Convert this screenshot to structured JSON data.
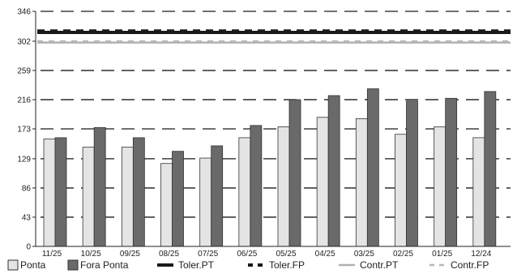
{
  "chart_data": {
    "type": "bar",
    "title": "",
    "xlabel": "",
    "ylabel": "",
    "ylim": [
      0,
      346
    ],
    "yticks": [
      0,
      43,
      86,
      129,
      173,
      216,
      259,
      302,
      346
    ],
    "categories": [
      "11/25",
      "10/25",
      "09/25",
      "08/25",
      "07/25",
      "06/25",
      "05/25",
      "04/25",
      "03/25",
      "02/25",
      "01/25",
      "12/24"
    ],
    "series": [
      {
        "name": "Ponta",
        "color": "#e4e4e4",
        "values": [
          158,
          146,
          146,
          122,
          130,
          160,
          176,
          190,
          188,
          165,
          176,
          160
        ]
      },
      {
        "name": "Fora Ponta",
        "color": "#6a6a6a",
        "values": [
          160,
          175,
          160,
          140,
          148,
          178,
          216,
          222,
          232,
          214,
          218,
          228
        ]
      }
    ],
    "reference_lines": [
      {
        "name": "Toler.PT",
        "value": 315,
        "color": "#1a1a1a",
        "style": "solid-thick"
      },
      {
        "name": "Toler.FP",
        "value": 317,
        "color": "#1a1a1a",
        "style": "dashed-thick"
      },
      {
        "name": "Contr.PT",
        "value": 300,
        "color": "#b0b0b0",
        "style": "solid"
      },
      {
        "name": "Contr.FP",
        "value": 302,
        "color": "#b8b8b8",
        "style": "dashed"
      }
    ],
    "grid": "dashed-horizontal",
    "legend_position": "bottom"
  }
}
